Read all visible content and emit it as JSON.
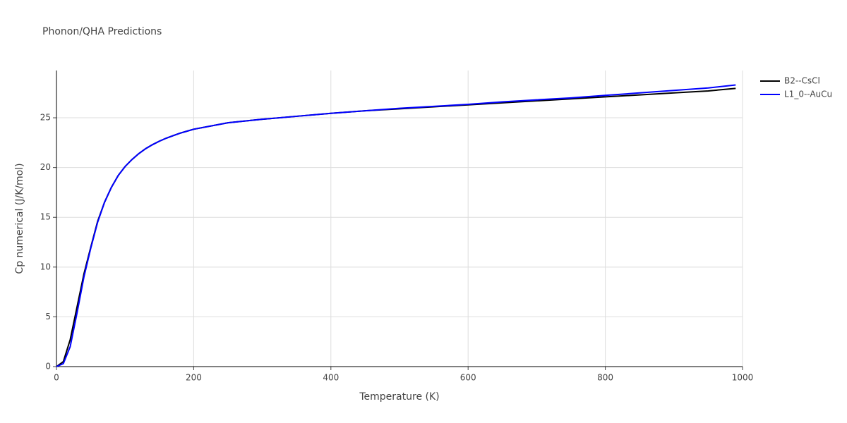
{
  "chart_data": {
    "type": "line",
    "title": "Phonon/QHA Predictions",
    "x_label": "Temperature (K)",
    "y_label": "Cp numerical (J/K/mol)",
    "x": [
      0,
      10,
      20,
      30,
      40,
      50,
      60,
      70,
      80,
      90,
      100,
      110,
      120,
      130,
      140,
      150,
      160,
      170,
      180,
      190,
      200,
      250,
      300,
      350,
      400,
      450,
      500,
      550,
      600,
      650,
      700,
      750,
      800,
      850,
      900,
      950,
      990
    ],
    "series": [
      {
        "name": "B2--CsCl",
        "color": "#000000",
        "values": [
          0,
          0.5,
          2.7,
          6.0,
          9.3,
          12.0,
          14.6,
          16.5,
          18.0,
          19.2,
          20.1,
          20.8,
          21.4,
          21.9,
          22.3,
          22.65,
          22.95,
          23.2,
          23.45,
          23.65,
          23.85,
          24.5,
          24.85,
          25.15,
          25.45,
          25.7,
          25.9,
          26.1,
          26.3,
          26.5,
          26.7,
          26.9,
          27.1,
          27.3,
          27.5,
          27.7,
          27.95
        ]
      },
      {
        "name": "L1_0--AuCu",
        "color": "#0000ff",
        "values": [
          0,
          0.3,
          2.0,
          5.4,
          9.0,
          11.9,
          14.5,
          16.5,
          18.0,
          19.2,
          20.1,
          20.8,
          21.4,
          21.9,
          22.3,
          22.65,
          22.95,
          23.2,
          23.45,
          23.65,
          23.85,
          24.5,
          24.85,
          25.15,
          25.45,
          25.7,
          25.95,
          26.15,
          26.35,
          26.6,
          26.8,
          27.0,
          27.25,
          27.5,
          27.75,
          28.0,
          28.3
        ]
      }
    ],
    "xlim": [
      0,
      1000
    ],
    "ylim": [
      0,
      29.75
    ],
    "xticks": [
      0,
      200,
      400,
      600,
      800,
      1000
    ],
    "yticks": [
      0,
      5,
      10,
      15,
      20,
      25
    ],
    "grid": true,
    "legend": "right"
  }
}
